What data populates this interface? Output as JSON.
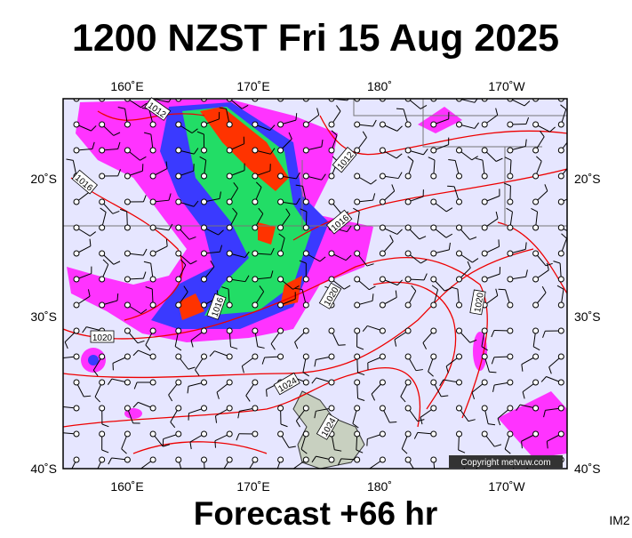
{
  "header": {
    "title": "1200 NZST Fri 15 Aug 2025"
  },
  "map": {
    "longitudes": [
      "160˚E",
      "170˚E",
      "180˚",
      "170˚W"
    ],
    "latitudes": [
      "20˚S",
      "30˚S",
      "40˚S"
    ],
    "isobar_labels": [
      "1012",
      "1016",
      "1012",
      "1016",
      "1020",
      "1016",
      "1020",
      "1020",
      "1024",
      "1024"
    ],
    "copyright": "Copyright metvuw.com"
  },
  "footer": {
    "caption": "Forecast +66 hr",
    "code": "IM2"
  }
}
